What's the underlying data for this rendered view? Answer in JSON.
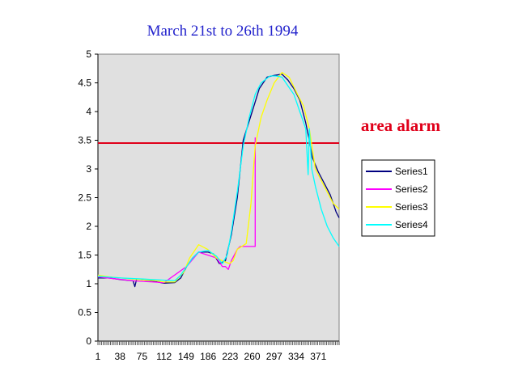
{
  "chart_data": {
    "type": "line",
    "title": "March 21st to 26th 1994",
    "xlabel": "",
    "ylabel": "",
    "ylim": [
      0,
      5
    ],
    "xlim": [
      1,
      406
    ],
    "yticks": [
      "0",
      "0.5",
      "1",
      "1.5",
      "2",
      "2.5",
      "3",
      "3.5",
      "4",
      "4.5",
      "5"
    ],
    "xticks": [
      "1",
      "38",
      "75",
      "112",
      "149",
      "186",
      "223",
      "260",
      "297",
      "334",
      "371"
    ],
    "grid": false,
    "legend": "right",
    "plot_background": "#e0e0e0",
    "annotation": {
      "text": "area alarm",
      "y": 3.45,
      "color": "#e0001a"
    },
    "series": [
      {
        "name": "Series1",
        "color": "#000080",
        "points": [
          [
            1,
            1.1
          ],
          [
            20,
            1.1
          ],
          [
            40,
            1.07
          ],
          [
            60,
            1.05
          ],
          [
            63,
            0.95
          ],
          [
            66,
            1.08
          ],
          [
            90,
            1.05
          ],
          [
            112,
            1.01
          ],
          [
            130,
            1.02
          ],
          [
            140,
            1.1
          ],
          [
            150,
            1.3
          ],
          [
            160,
            1.45
          ],
          [
            170,
            1.55
          ],
          [
            186,
            1.55
          ],
          [
            195,
            1.52
          ],
          [
            205,
            1.35
          ],
          [
            215,
            1.4
          ],
          [
            225,
            1.85
          ],
          [
            235,
            2.5
          ],
          [
            245,
            3.5
          ],
          [
            260,
            4.0
          ],
          [
            272,
            4.4
          ],
          [
            285,
            4.6
          ],
          [
            297,
            4.63
          ],
          [
            310,
            4.65
          ],
          [
            320,
            4.55
          ],
          [
            330,
            4.4
          ],
          [
            340,
            4.2
          ],
          [
            350,
            3.8
          ],
          [
            356,
            3.5
          ],
          [
            361,
            3.2
          ],
          [
            371,
            2.95
          ],
          [
            381,
            2.75
          ],
          [
            391,
            2.55
          ],
          [
            401,
            2.25
          ],
          [
            406,
            2.15
          ]
        ]
      },
      {
        "name": "Series2",
        "color": "#ff00ff",
        "points": [
          [
            1,
            1.12
          ],
          [
            60,
            1.05
          ],
          [
            112,
            1.02
          ],
          [
            150,
            1.3
          ],
          [
            170,
            1.55
          ],
          [
            200,
            1.45
          ],
          [
            210,
            1.3
          ],
          [
            215,
            1.3
          ],
          [
            220,
            1.25
          ],
          [
            225,
            1.4
          ],
          [
            235,
            1.6
          ],
          [
            240,
            1.65
          ],
          [
            265,
            1.65
          ],
          [
            265,
            3.55
          ]
        ]
      },
      {
        "name": "Series3",
        "color": "#ffff00",
        "points": [
          [
            1,
            1.15
          ],
          [
            20,
            1.12
          ],
          [
            40,
            1.1
          ],
          [
            70,
            1.07
          ],
          [
            100,
            1.05
          ],
          [
            112,
            1.03
          ],
          [
            130,
            1.03
          ],
          [
            145,
            1.2
          ],
          [
            155,
            1.45
          ],
          [
            170,
            1.68
          ],
          [
            185,
            1.6
          ],
          [
            200,
            1.45
          ],
          [
            210,
            1.4
          ],
          [
            222,
            1.35
          ],
          [
            228,
            1.4
          ],
          [
            235,
            1.6
          ],
          [
            250,
            1.7
          ],
          [
            258,
            2.4
          ],
          [
            265,
            3.4
          ],
          [
            275,
            3.9
          ],
          [
            285,
            4.2
          ],
          [
            297,
            4.5
          ],
          [
            310,
            4.68
          ],
          [
            322,
            4.6
          ],
          [
            336,
            4.3
          ],
          [
            346,
            4.1
          ],
          [
            356,
            3.7
          ],
          [
            366,
            3.0
          ],
          [
            376,
            2.8
          ],
          [
            386,
            2.6
          ],
          [
            396,
            2.4
          ],
          [
            406,
            2.3
          ]
        ]
      },
      {
        "name": "Series4",
        "color": "#00ffff",
        "points": [
          [
            1,
            1.13
          ],
          [
            40,
            1.1
          ],
          [
            80,
            1.08
          ],
          [
            112,
            1.06
          ],
          [
            130,
            1.05
          ],
          [
            140,
            1.15
          ],
          [
            150,
            1.3
          ],
          [
            160,
            1.45
          ],
          [
            170,
            1.55
          ],
          [
            186,
            1.58
          ],
          [
            200,
            1.48
          ],
          [
            210,
            1.35
          ],
          [
            218,
            1.5
          ],
          [
            225,
            1.9
          ],
          [
            235,
            2.6
          ],
          [
            245,
            3.4
          ],
          [
            255,
            3.9
          ],
          [
            265,
            4.3
          ],
          [
            275,
            4.5
          ],
          [
            290,
            4.62
          ],
          [
            300,
            4.62
          ],
          [
            310,
            4.6
          ],
          [
            320,
            4.45
          ],
          [
            330,
            4.3
          ],
          [
            340,
            4.0
          ],
          [
            345,
            3.85
          ],
          [
            350,
            3.7
          ],
          [
            354,
            2.9
          ],
          [
            356,
            3.7
          ],
          [
            360,
            3.0
          ],
          [
            366,
            2.7
          ],
          [
            376,
            2.3
          ],
          [
            386,
            2.0
          ],
          [
            396,
            1.8
          ],
          [
            406,
            1.65
          ]
        ]
      }
    ]
  }
}
